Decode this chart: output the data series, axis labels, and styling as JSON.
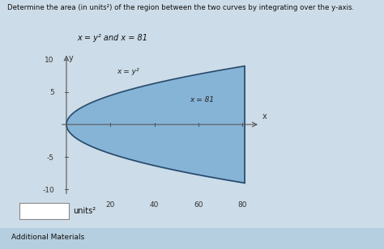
{
  "title": "Determine the area (in units²) of the region between the two curves by integrating over the y-axis.",
  "subtitle": "x = y² and x = 81",
  "xlabel": "x",
  "ylabel": "y",
  "xlim": [
    -4,
    92
  ],
  "ylim": [
    -11.5,
    11.5
  ],
  "x_ticks": [
    20,
    40,
    60,
    80
  ],
  "y_ticks": [
    -10,
    -5,
    5,
    10
  ],
  "fill_color": "#7aaed4",
  "fill_alpha": 0.85,
  "curve_label": "x = y²",
  "line_label": "x = 81",
  "bg_color": "#ccdce8",
  "plot_bg": "#ccdce8",
  "input_box_color": "#ffffff",
  "units_label": "units²",
  "additional_materials_label": "Additional Materials",
  "add_mat_color": "#b5cfe0"
}
